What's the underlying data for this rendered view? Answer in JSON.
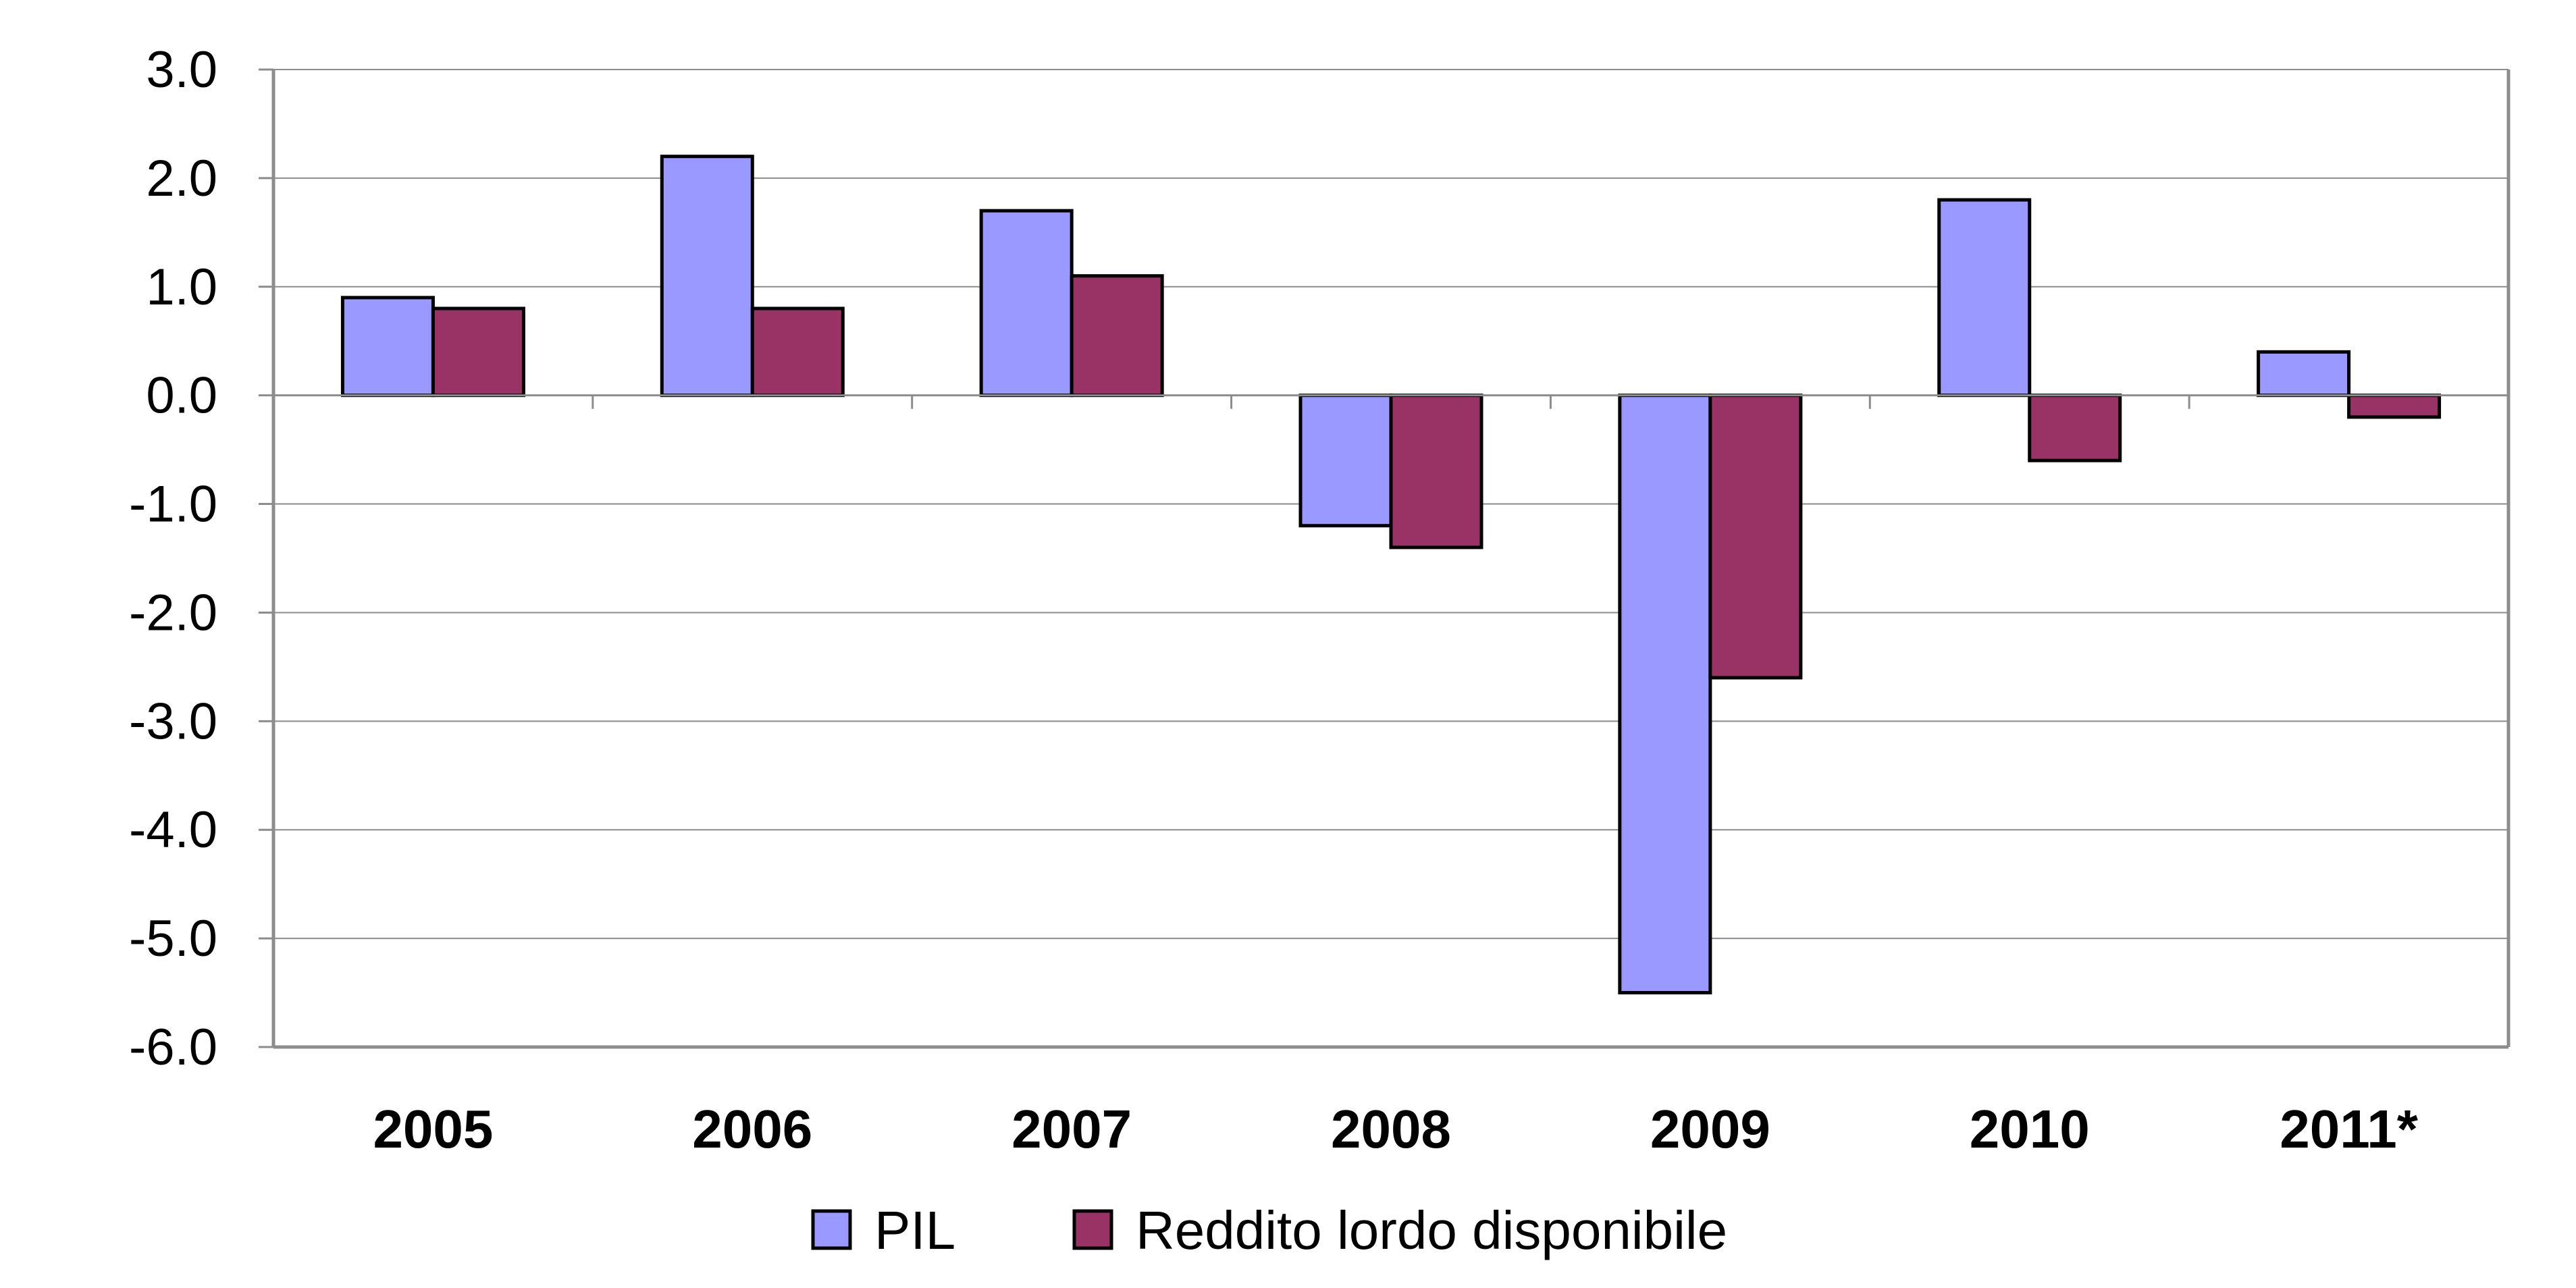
{
  "chart_data": {
    "type": "bar",
    "categories": [
      "2005",
      "2006",
      "2007",
      "2008",
      "2009",
      "2010",
      "2011*"
    ],
    "series": [
      {
        "name": "PIL",
        "values": [
          0.9,
          2.2,
          1.7,
          -1.2,
          -5.5,
          1.8,
          0.4
        ],
        "color": "#9999FF"
      },
      {
        "name": "Reddito lordo disponibile",
        "values": [
          0.8,
          0.8,
          1.1,
          -1.4,
          -2.6,
          -0.6,
          -0.2
        ],
        "color": "#993366"
      }
    ],
    "y_ticks": [
      "3.0",
      "2.0",
      "1.0",
      "0.0",
      "-1.0",
      "-2.0",
      "-3.0",
      "-4.0",
      "-5.0",
      "-6.0"
    ],
    "ylim": [
      -6.0,
      3.0
    ],
    "grid": true,
    "legend_position": "bottom",
    "title": "",
    "xlabel": "",
    "ylabel": ""
  }
}
